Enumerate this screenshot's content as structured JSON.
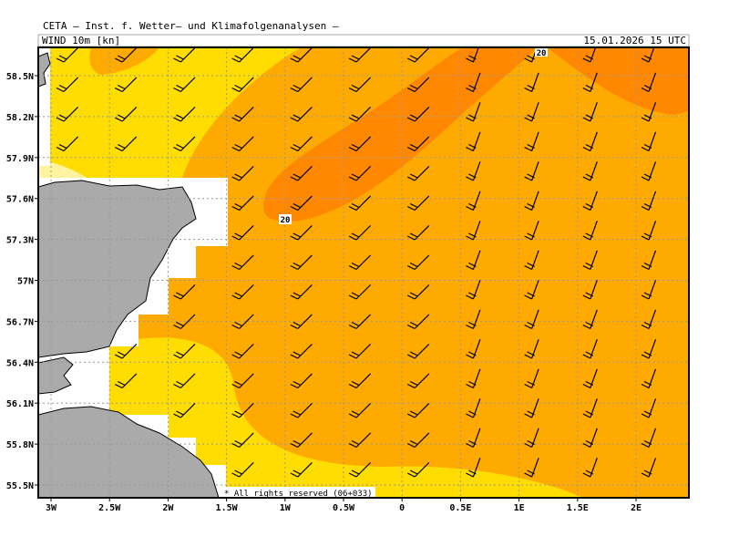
{
  "header": {
    "title": "CETA — Inst. f. Wetter— und Klimafolgenanalysen —",
    "parameter": "WIND 10m [kn]",
    "valid_time": "15.01.2026 15 UTC"
  },
  "map": {
    "lat_labels": [
      "58.5N",
      "58.2N",
      "57.9N",
      "57.6N",
      "57.3N",
      "57N",
      "56.7N",
      "56.4N",
      "56.1N",
      "55.8N",
      "55.5N"
    ],
    "lon_labels": [
      "3W",
      "2.5W",
      "2W",
      "1.5W",
      "1W",
      "0.5W",
      "0",
      "0.5E",
      "1E",
      "1.5E",
      "2E"
    ],
    "contour_labels": [
      "20",
      "20"
    ],
    "footer": "* All rights reserved (06+033)"
  }
}
